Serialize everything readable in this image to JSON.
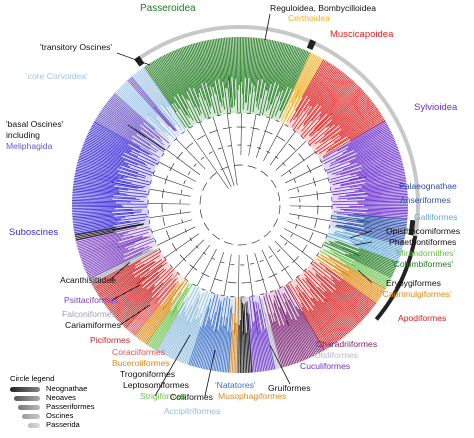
{
  "colors": {
    "passeroidea": "#1f7a1f",
    "muscicapoidea": "#e02020",
    "sylvioidea": "#6a2ecf",
    "corvoidea": "#9fc4e8",
    "meliphagida": "#6a55c8",
    "suboscines": "#3a2ad8",
    "palaeognathae": "#2b4fa6",
    "anseriformes": "#2b4fa6",
    "galliformes": "#66a8d6",
    "mirandornithes": "#6cc04a",
    "columbiformes": "#1f7a1f",
    "caprimulgiformes": "#e08a10",
    "apodiformes": "#d02020",
    "charadriiformes": "#7a2070",
    "cuculiformes": "#6a35c8",
    "otidiformes": "#b8b8c8",
    "musophagiformes": "#d48a2a",
    "natatores": "#3d72c8",
    "accipitriformes": "#8fbde0",
    "strigiformes": "#6cc04a",
    "bucerotiformes": "#e08a10",
    "coraciiformes": "#e05050",
    "piciformes": "#c82020",
    "psittaciformes": "#7a3fc0",
    "falconiformes": "#a0a0b0",
    "certhoidea": "#f0b020",
    "dark": "#111111"
  },
  "labels": {
    "passeroidea": "Passeroidea",
    "reguloidea": "Reguloidea, Bombycilloidea",
    "certhoidea": "Certhoidea",
    "muscicapoidea": "Muscicapoidea",
    "transitory": "'transitory Oscines'",
    "core_corvoidea": "'core Corvoidea'",
    "sylvioidea": "Sylvioidea",
    "basal1": "'basal Oscines'",
    "basal2": "including",
    "meliphagida": "Meliphagida",
    "palaeognathae": "Palaeognathae",
    "anseriformes": "Anseriformes",
    "galliformes": "Galliformes",
    "suboscines": "Suboscines",
    "opisthocomiformes": "Opisthocomiformes",
    "phaethontiformes": "Phaethontiformes",
    "mirandornithes": "'Mirandornithes'",
    "columbiformes": "'Columbiformes'",
    "acanthisittidae": "Acanthisittidae",
    "erypygiformes": "Erypygiformes",
    "caprimulgiformes": "'Caprimulgiformes'",
    "psittaciformes": "Psittaciformes",
    "apodiformes": "Apodiformes",
    "falconiformes": "Falconiformes",
    "cariamiformes": "Cariamiformes",
    "charadriiformes": "Charadriiformes",
    "piciformes": "Piciformes",
    "otidiformes": "Otidiformes",
    "coraciiformes": "Coraciiformes",
    "cuculiformes": "Cuculiformes",
    "bucerotiformes": "Bucerotiformes",
    "trogoniformes": "Trogoniformes",
    "leptosomiformes": "Leptosomiformes",
    "strigiformes": "Strigiformes",
    "coliiformes": "Coliiformes",
    "accipitriformes": "Accipitriformes",
    "natatores": "'Natatores'",
    "musophagiformes": "Musophagiformes",
    "gruiformes": "Gruiformes"
  },
  "legend": {
    "title": "Circle legend",
    "items": [
      "Neognathae",
      "Neoaves",
      "Passeriformes",
      "Oscines",
      "Passerida"
    ]
  }
}
